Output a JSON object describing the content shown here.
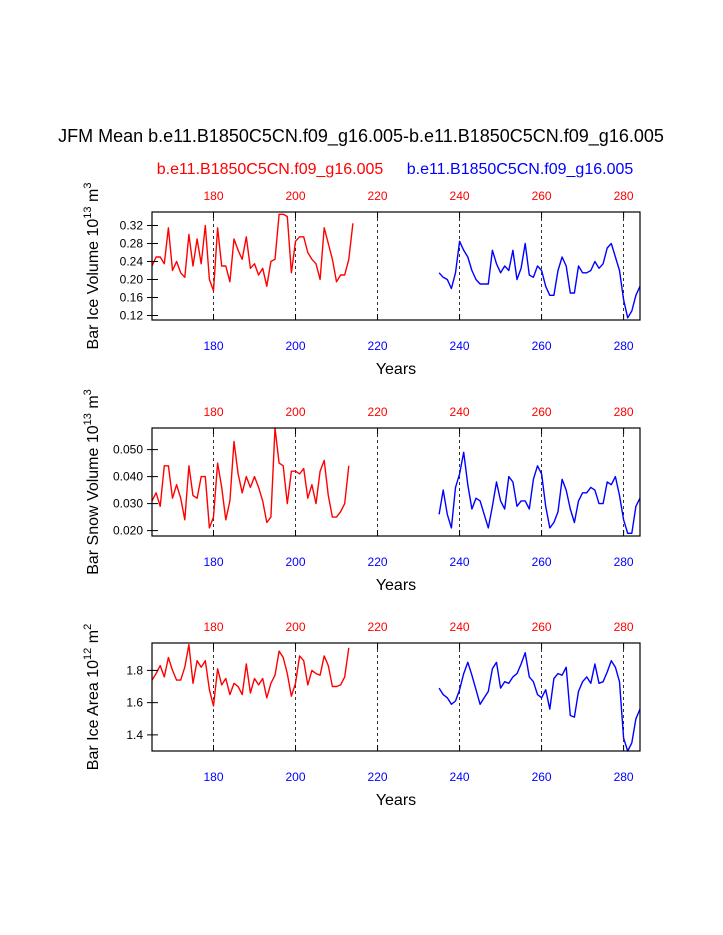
{
  "title": "JFM Mean b.e11.B1850C5CN.f09_g16.005-b.e11.B1850C5CN.f09_g16.005",
  "legend": {
    "case1": "b.e11.B1850C5CN.f09_g16.005",
    "case2": "b.e11.B1850C5CN.f09_g16.005",
    "case1_color": "#ff0000",
    "case2_color": "#0000ff"
  },
  "chart_data": [
    {
      "type": "line",
      "name": "ice-volume",
      "ylabel_main": "Bar Ice Volume 10",
      "ylabel_exp": "13",
      "ylabel_unit": " m",
      "ylabel_unit_exp": "3",
      "xlabel": "Years",
      "xlim": [
        165,
        284
      ],
      "ylim": [
        0.11,
        0.35
      ],
      "yticks": [
        0.12,
        0.16,
        0.2,
        0.24,
        0.28,
        0.32
      ],
      "ytick_labels": [
        "0.12",
        "0.16",
        "0.20",
        "0.24",
        "0.28",
        "0.32"
      ],
      "top_ticks": [
        180,
        200,
        220,
        240,
        260,
        280
      ],
      "top_labels": [
        "180",
        "200",
        "220",
        "240",
        "260",
        "280"
      ],
      "bottom_ticks": [
        180,
        200,
        220,
        240,
        260,
        280
      ],
      "bottom_labels": [
        "180",
        "200",
        "220",
        "240",
        "260",
        "280"
      ],
      "series": [
        {
          "name": "b.e11.B1850C5CN.f09_g16.005",
          "color": "#ff0000",
          "x_start": 165,
          "values": [
            0.23,
            0.25,
            0.25,
            0.235,
            0.315,
            0.22,
            0.24,
            0.215,
            0.205,
            0.3,
            0.23,
            0.29,
            0.235,
            0.32,
            0.2,
            0.175,
            0.315,
            0.23,
            0.23,
            0.195,
            0.29,
            0.265,
            0.245,
            0.295,
            0.225,
            0.235,
            0.21,
            0.225,
            0.185,
            0.24,
            0.245,
            0.345,
            0.345,
            0.34,
            0.215,
            0.285,
            0.295,
            0.295,
            0.26,
            0.245,
            0.235,
            0.2,
            0.315,
            0.28,
            0.245,
            0.195,
            0.21,
            0.21,
            0.245,
            0.325
          ]
        },
        {
          "name": "b.e11.B1850C5CN.f09_g16.005",
          "color": "#0000ff",
          "x_start": 235,
          "values": [
            0.215,
            0.205,
            0.2,
            0.18,
            0.215,
            0.285,
            0.265,
            0.25,
            0.22,
            0.2,
            0.19,
            0.19,
            0.19,
            0.265,
            0.235,
            0.215,
            0.23,
            0.22,
            0.265,
            0.2,
            0.225,
            0.28,
            0.21,
            0.205,
            0.23,
            0.22,
            0.185,
            0.165,
            0.165,
            0.22,
            0.25,
            0.23,
            0.17,
            0.17,
            0.23,
            0.215,
            0.215,
            0.22,
            0.24,
            0.225,
            0.235,
            0.27,
            0.28,
            0.25,
            0.22,
            0.155,
            0.115,
            0.13,
            0.165,
            0.185
          ]
        }
      ]
    },
    {
      "type": "line",
      "name": "snow-volume",
      "ylabel_main": "Bar Snow Volume 10",
      "ylabel_exp": "13",
      "ylabel_unit": " m",
      "ylabel_unit_exp": "3",
      "xlabel": "Years",
      "xlim": [
        165,
        284
      ],
      "ylim": [
        0.018,
        0.058
      ],
      "yticks": [
        0.02,
        0.03,
        0.04,
        0.05
      ],
      "ytick_labels": [
        "0.020",
        "0.030",
        "0.040",
        "0.050"
      ],
      "top_ticks": [
        180,
        200,
        220,
        240,
        260,
        280
      ],
      "top_labels": [
        "180",
        "200",
        "220",
        "240",
        "260",
        "280"
      ],
      "bottom_ticks": [
        180,
        200,
        220,
        240,
        260,
        280
      ],
      "bottom_labels": [
        "180",
        "200",
        "220",
        "240",
        "260",
        "280"
      ],
      "series": [
        {
          "name": "b.e11.B1850C5CN.f09_g16.005",
          "color": "#ff0000",
          "x_start": 165,
          "values": [
            0.031,
            0.034,
            0.029,
            0.044,
            0.044,
            0.032,
            0.037,
            0.032,
            0.024,
            0.044,
            0.033,
            0.032,
            0.04,
            0.04,
            0.021,
            0.025,
            0.045,
            0.036,
            0.024,
            0.031,
            0.053,
            0.041,
            0.034,
            0.04,
            0.036,
            0.04,
            0.036,
            0.031,
            0.023,
            0.025,
            0.058,
            0.045,
            0.044,
            0.03,
            0.042,
            0.042,
            0.041,
            0.043,
            0.032,
            0.037,
            0.03,
            0.042,
            0.046,
            0.033,
            0.025,
            0.025,
            0.027,
            0.03,
            0.044
          ]
        },
        {
          "name": "b.e11.B1850C5CN.f09_g16.005",
          "color": "#0000ff",
          "x_start": 235,
          "values": [
            0.026,
            0.035,
            0.026,
            0.021,
            0.036,
            0.041,
            0.049,
            0.037,
            0.028,
            0.032,
            0.031,
            0.026,
            0.021,
            0.029,
            0.038,
            0.031,
            0.028,
            0.04,
            0.038,
            0.029,
            0.031,
            0.031,
            0.028,
            0.039,
            0.044,
            0.041,
            0.029,
            0.021,
            0.023,
            0.027,
            0.039,
            0.035,
            0.028,
            0.023,
            0.031,
            0.034,
            0.034,
            0.036,
            0.035,
            0.03,
            0.03,
            0.038,
            0.037,
            0.04,
            0.033,
            0.024,
            0.019,
            0.019,
            0.029,
            0.032
          ]
        }
      ]
    },
    {
      "type": "line",
      "name": "ice-area",
      "ylabel_main": "Bar Ice Area 10",
      "ylabel_exp": "12",
      "ylabel_unit": " m",
      "ylabel_unit_exp": "2",
      "xlabel": "Years",
      "xlim": [
        165,
        284
      ],
      "ylim": [
        1.3,
        1.97
      ],
      "yticks": [
        1.4,
        1.6,
        1.8
      ],
      "ytick_labels": [
        "1.4",
        "1.6",
        "1.8"
      ],
      "top_ticks": [
        180,
        200,
        220,
        240,
        260,
        280
      ],
      "top_labels": [
        "180",
        "200",
        "220",
        "240",
        "260",
        "280"
      ],
      "bottom_ticks": [
        180,
        200,
        220,
        240,
        260,
        280
      ],
      "bottom_labels": [
        "180",
        "200",
        "220",
        "240",
        "260",
        "280"
      ],
      "series": [
        {
          "name": "b.e11.B1850C5CN.f09_g16.005",
          "color": "#ff0000",
          "x_start": 165,
          "values": [
            1.74,
            1.78,
            1.83,
            1.76,
            1.88,
            1.8,
            1.74,
            1.74,
            1.82,
            1.96,
            1.72,
            1.86,
            1.82,
            1.86,
            1.68,
            1.58,
            1.81,
            1.71,
            1.75,
            1.65,
            1.72,
            1.7,
            1.65,
            1.84,
            1.66,
            1.75,
            1.71,
            1.75,
            1.63,
            1.72,
            1.77,
            1.92,
            1.88,
            1.78,
            1.64,
            1.72,
            1.89,
            1.86,
            1.71,
            1.8,
            1.78,
            1.77,
            1.89,
            1.83,
            1.7,
            1.7,
            1.71,
            1.76,
            1.94
          ]
        },
        {
          "name": "b.e11.B1850C5CN.f09_g16.005",
          "color": "#0000ff",
          "x_start": 235,
          "values": [
            1.69,
            1.65,
            1.63,
            1.59,
            1.61,
            1.68,
            1.78,
            1.85,
            1.77,
            1.68,
            1.59,
            1.63,
            1.67,
            1.81,
            1.85,
            1.69,
            1.73,
            1.72,
            1.76,
            1.78,
            1.84,
            1.91,
            1.76,
            1.73,
            1.65,
            1.63,
            1.68,
            1.56,
            1.75,
            1.78,
            1.77,
            1.82,
            1.52,
            1.51,
            1.67,
            1.73,
            1.76,
            1.72,
            1.84,
            1.72,
            1.73,
            1.79,
            1.86,
            1.82,
            1.73,
            1.38,
            1.3,
            1.35,
            1.5,
            1.56
          ]
        }
      ]
    }
  ]
}
